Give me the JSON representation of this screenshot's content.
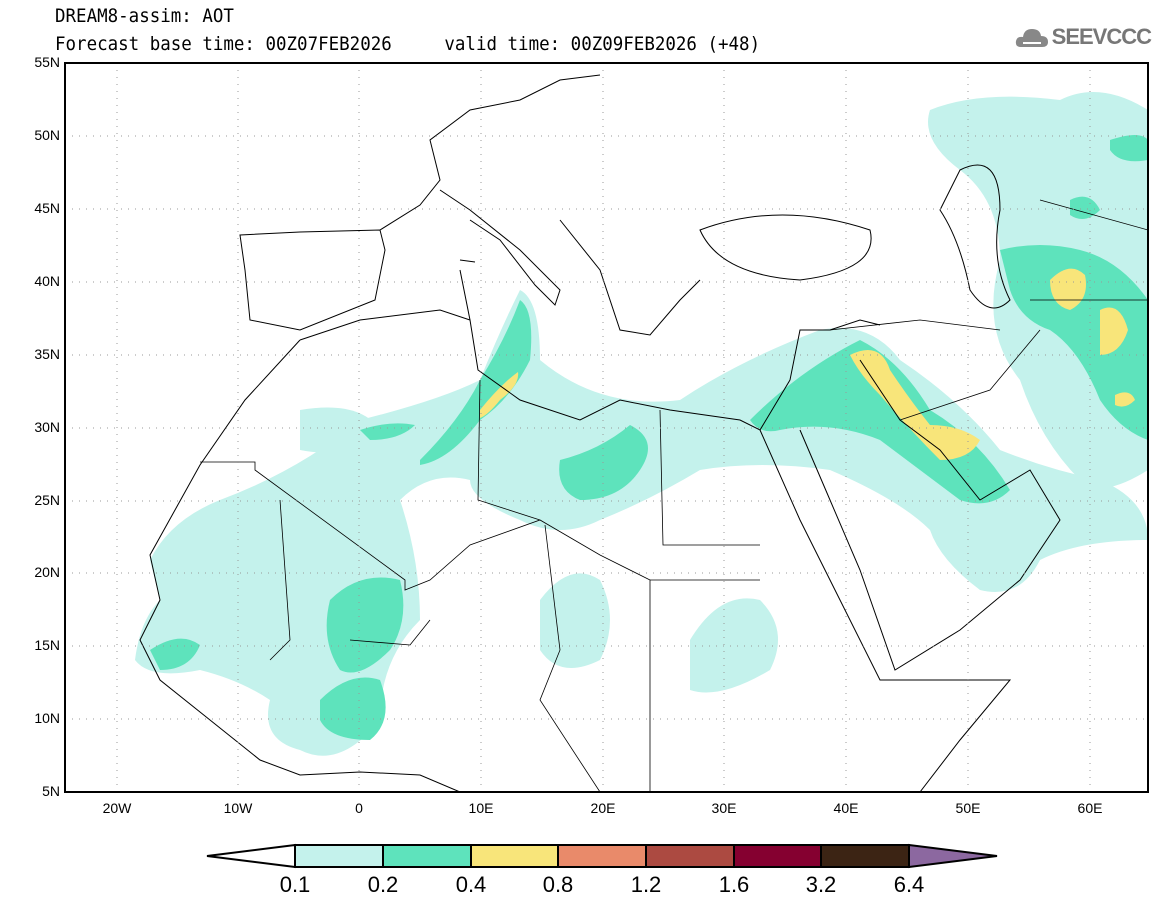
{
  "header": {
    "title": "DREAM8-assim: AOT",
    "subtitle": "Forecast base time: 00Z07FEB2026     valid time: 00Z09FEB2026 (+48)",
    "logo": "SEEVCCC"
  },
  "axes": {
    "lat_labels": [
      "55N",
      "50N",
      "45N",
      "40N",
      "35N",
      "30N",
      "25N",
      "20N",
      "15N",
      "10N",
      "5N"
    ],
    "lon_labels": [
      "20W",
      "10W",
      "0",
      "10E",
      "20E",
      "30E",
      "40E",
      "50E",
      "60E"
    ]
  },
  "colorbar": {
    "levels": [
      "0.1",
      "0.2",
      "0.4",
      "0.8",
      "1.2",
      "1.6",
      "3.2",
      "6.4"
    ],
    "colors": [
      "#ffffff",
      "#c4f2ec",
      "#5ee3bc",
      "#f8e57a",
      "#e98a6a",
      "#ac4a41",
      "#850030",
      "#3c2414",
      "#8c68a0"
    ]
  }
}
